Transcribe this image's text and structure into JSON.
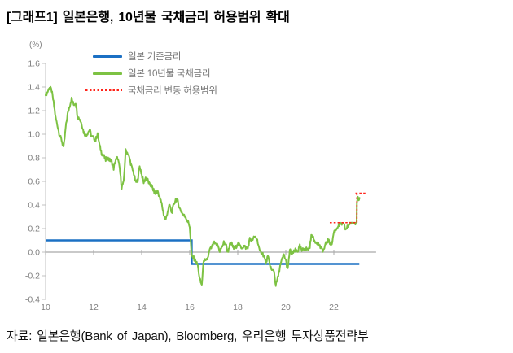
{
  "title": "[그래프1] 일본은행, 10년물 국채금리 허용범위 확대",
  "source": "자료: 일본은행(Bank of Japan), Bloomberg, 우리은행 투자상품전략부",
  "chart_data": {
    "type": "line",
    "title": "일본은행, 10년물 국채금리 허용범위 확대",
    "unit_label": "(%)",
    "xlabel": "연도 (2010~2023)",
    "ylabel": "%",
    "ylim": [
      -0.4,
      1.6
    ],
    "xlim_years": [
      2010,
      2023.76
    ],
    "grid": false,
    "legend_position": "inside-top-left",
    "y_tick_values": [
      1.6,
      1.4,
      1.2,
      1.0,
      0.8,
      0.6,
      0.4,
      0.2,
      0.0,
      -0.2,
      -0.4
    ],
    "y_tick_labels": [
      "1.6",
      "1.4",
      "1.2",
      "1.0",
      "0.8",
      "0.6",
      "0.4",
      "0.2",
      "0.0",
      "-0.2",
      "-0.4"
    ],
    "x_tick_years": [
      2010,
      2012,
      2014,
      2016,
      2018,
      2020,
      2022
    ],
    "x_tick_labels": [
      "10",
      "12",
      "14",
      "16",
      "18",
      "20",
      "22"
    ],
    "colors": {
      "policy_rate": "#1b70c4",
      "jgb_10y": "#7dc243",
      "band": "#ff241a",
      "zero_line": "#a9a9a9",
      "axis": "#c0c0c0",
      "tick_text": "#7f7f7f"
    },
    "series": [
      {
        "name": "일본 기준금리",
        "type": "step",
        "color_key": "policy_rate",
        "points": [
          [
            2010.0,
            0.1
          ],
          [
            2016.08,
            0.1
          ],
          [
            2016.08,
            -0.1
          ],
          [
            2023.06,
            -0.1
          ]
        ]
      },
      {
        "name": "일본 10년물 국채금리",
        "type": "line",
        "color_key": "jgb_10y",
        "monthly_start_year": 2010,
        "monthly_values": [
          1.33,
          1.36,
          1.4,
          1.37,
          1.27,
          1.14,
          1.07,
          0.99,
          0.95,
          0.88,
          1.05,
          1.17,
          1.24,
          1.3,
          1.25,
          1.27,
          1.15,
          1.13,
          1.09,
          1.02,
          0.99,
          1.01,
          1.04,
          0.98,
          0.97,
          0.95,
          1.01,
          0.9,
          0.84,
          0.82,
          0.78,
          0.8,
          0.78,
          0.77,
          0.71,
          0.78,
          0.8,
          0.71,
          0.55,
          0.59,
          0.86,
          0.84,
          0.79,
          0.72,
          0.67,
          0.59,
          0.61,
          0.73,
          0.66,
          0.59,
          0.63,
          0.61,
          0.57,
          0.56,
          0.52,
          0.49,
          0.52,
          0.46,
          0.41,
          0.32,
          0.27,
          0.35,
          0.4,
          0.33,
          0.4,
          0.45,
          0.43,
          0.37,
          0.34,
          0.31,
          0.3,
          0.26,
          0.22,
          -0.04,
          -0.05,
          -0.08,
          -0.11,
          -0.23,
          -0.28,
          -0.06,
          -0.08,
          -0.05,
          0.02,
          0.04,
          0.08,
          0.06,
          0.06,
          0.01,
          0.04,
          0.08,
          0.07,
          0.0,
          0.06,
          0.07,
          0.03,
          0.04,
          0.08,
          0.05,
          0.04,
          0.05,
          0.04,
          0.03,
          0.11,
          0.1,
          0.12,
          0.13,
          0.09,
          0.0,
          0.0,
          -0.03,
          -0.09,
          -0.04,
          -0.1,
          -0.16,
          -0.15,
          -0.28,
          -0.22,
          -0.13,
          -0.07,
          -0.02,
          -0.07,
          -0.15,
          0.02,
          -0.02,
          0.0,
          0.02,
          0.01,
          0.05,
          0.01,
          0.03,
          0.03,
          0.02,
          0.05,
          0.16,
          0.1,
          0.09,
          0.08,
          0.05,
          0.02,
          0.02,
          0.07,
          0.1,
          0.08,
          0.07,
          0.17,
          0.19,
          0.22,
          0.23,
          0.24,
          0.23,
          0.19,
          0.22,
          0.25,
          0.25,
          0.25,
          0.25
        ],
        "tail_points": [
          [
            2022.95,
            0.25
          ],
          [
            2022.96,
            0.42
          ],
          [
            2023.0,
            0.47
          ],
          [
            2023.04,
            0.44
          ],
          [
            2023.07,
            0.46
          ]
        ]
      },
      {
        "name": "국채금리 변동 허용범위",
        "type": "dashed-segments",
        "color_key": "band",
        "segments": [
          [
            [
              2021.83,
              0.25
            ],
            [
              2022.96,
              0.25
            ]
          ],
          [
            [
              2022.96,
              0.25
            ],
            [
              2022.96,
              0.5
            ]
          ],
          [
            [
              2022.9,
              0.5
            ],
            [
              2023.33,
              0.5
            ]
          ]
        ]
      }
    ],
    "zero_line": {
      "from_year": 2010,
      "to_year": 2023.76,
      "value": 0.0
    }
  }
}
